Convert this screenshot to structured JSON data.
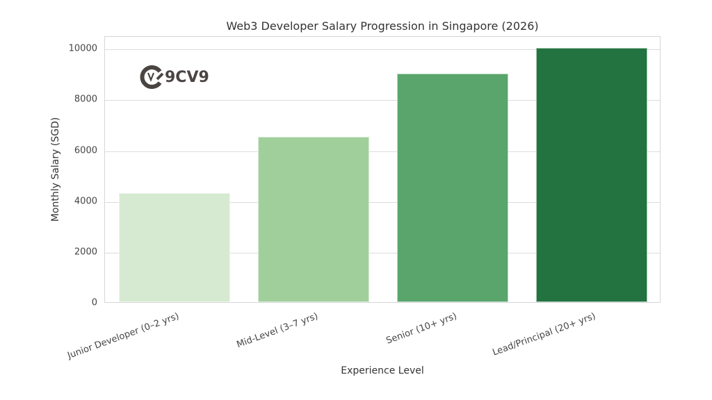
{
  "chart": {
    "title": "Web3 Developer Salary Progression in Singapore (2026)",
    "xlabel": "Experience Level",
    "ylabel": "Monthly Salary (SGD)",
    "yticks": [
      "0",
      "2000",
      "4000",
      "6000",
      "8000",
      "10000"
    ],
    "categories": [
      "Junior Developer (0–2 yrs)",
      "Mid-Level (3–7 yrs)",
      "Senior (10+ yrs)",
      "Lead/Principal (20+ yrs)"
    ],
    "colors": [
      "#d6ead2",
      "#a0cf9b",
      "#59a56b",
      "#227340"
    ]
  },
  "logo": {
    "text": "9CV9",
    "icon": "9cv9-logo-icon",
    "color": "#4a4442"
  },
  "chart_data": {
    "type": "bar",
    "title": "Web3 Developer Salary Progression in Singapore (2026)",
    "xlabel": "Experience Level",
    "ylabel": "Monthly Salary (SGD)",
    "categories": [
      "Junior Developer (0–2 yrs)",
      "Mid-Level (3–7 yrs)",
      "Senior (10+ yrs)",
      "Lead/Principal (20+ yrs)"
    ],
    "values": [
      4300,
      6500,
      9000,
      10000
    ],
    "colors": [
      "#d6ead2",
      "#a0cf9b",
      "#59a56b",
      "#227340"
    ],
    "ylim": [
      0,
      10500
    ],
    "yticks": [
      0,
      2000,
      4000,
      6000,
      8000,
      10000
    ],
    "grid": true,
    "legend": null,
    "xtick_rotation": 20
  }
}
